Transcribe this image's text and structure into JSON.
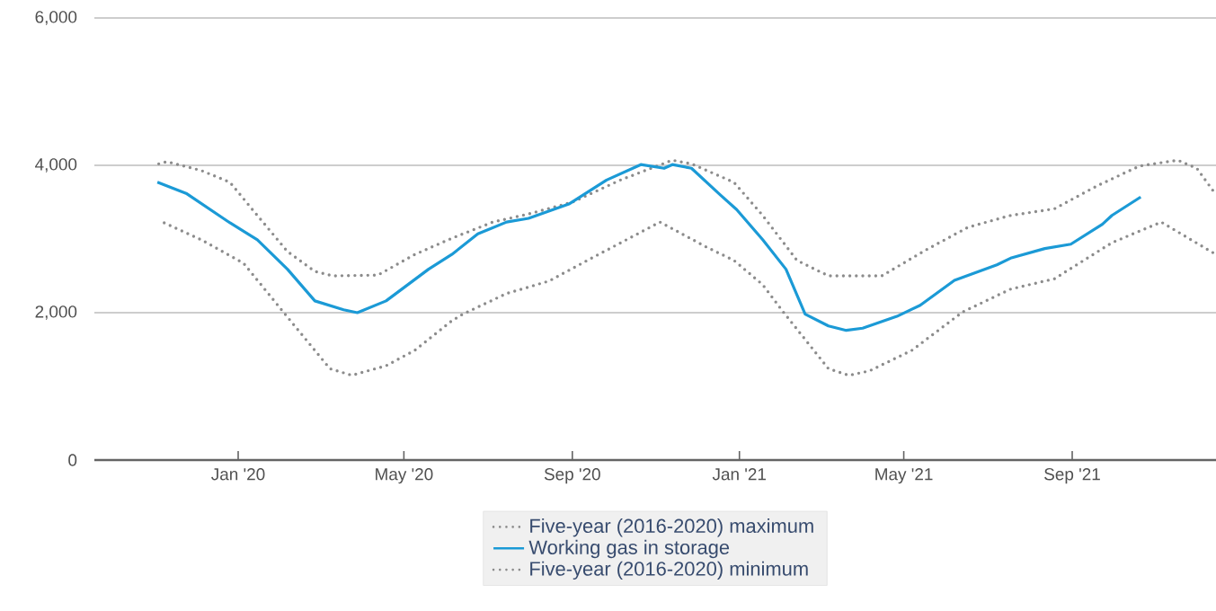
{
  "chart_data": {
    "type": "line",
    "xlim": [
      "2019-09-18",
      "2021-12-15"
    ],
    "ylim": [
      0,
      6000
    ],
    "xticks": [
      {
        "value": "2020-01-01",
        "label": "Jan '20"
      },
      {
        "value": "2020-05-01",
        "label": "May '20"
      },
      {
        "value": "2020-09-01",
        "label": "Sep '20"
      },
      {
        "value": "2021-01-01",
        "label": "Jan '21"
      },
      {
        "value": "2021-05-01",
        "label": "May '21"
      },
      {
        "value": "2021-09-01",
        "label": "Sep '21"
      }
    ],
    "yticks": [
      0,
      {
        "value": 2000,
        "label": "2,000"
      },
      {
        "value": 4000,
        "label": "4,000"
      },
      {
        "value": 6000,
        "label": "6,000"
      }
    ],
    "grid": "y",
    "legend": "bottom",
    "marker": "none",
    "series": [
      {
        "name": "Five-year (2016-2020) maximum",
        "color": "#8c8c8c",
        "line_style": "dotted",
        "x": [
          "2019-11-04",
          "2019-11-10",
          "2019-12-05",
          "2019-12-26",
          "2020-01-15",
          "2020-02-06",
          "2020-02-26",
          "2020-03-10",
          "2020-04-12",
          "2020-05-09",
          "2020-06-05",
          "2020-07-05",
          "2020-07-31",
          "2020-09-01",
          "2020-10-06",
          "2020-11-13",
          "2020-11-27",
          "2020-12-28",
          "2021-01-18",
          "2021-02-12",
          "2021-03-07",
          "2021-04-15",
          "2021-05-17",
          "2021-06-17",
          "2021-07-18",
          "2021-08-19",
          "2021-09-19",
          "2021-10-20",
          "2021-11-17",
          "2021-12-01",
          "2021-12-15"
        ],
        "values": [
          4020,
          4050,
          3930,
          3770,
          3320,
          2830,
          2560,
          2500,
          2510,
          2790,
          3010,
          3230,
          3340,
          3500,
          3800,
          4070,
          4020,
          3770,
          3320,
          2710,
          2500,
          2500,
          2850,
          3160,
          3320,
          3410,
          3720,
          3990,
          4070,
          3960,
          3600
        ]
      },
      {
        "name": "Working gas in storage",
        "color": "#1b9ad6",
        "line_style": "solid",
        "x": [
          "2019-11-03",
          "2019-11-24",
          "2019-12-26",
          "2020-01-15",
          "2020-02-06",
          "2020-02-26",
          "2020-03-18",
          "2020-03-28",
          "2020-04-18",
          "2020-05-19",
          "2020-06-05",
          "2020-06-24",
          "2020-07-15",
          "2020-07-31",
          "2020-08-30",
          "2020-09-26",
          "2020-10-21",
          "2020-11-07",
          "2020-11-13",
          "2020-11-27",
          "2020-12-18",
          "2020-12-30",
          "2021-01-18",
          "2021-02-04",
          "2021-02-18",
          "2021-03-07",
          "2021-03-20",
          "2021-04-01",
          "2021-04-26",
          "2021-05-13",
          "2021-06-07",
          "2021-07-08",
          "2021-07-18",
          "2021-08-12",
          "2021-08-31",
          "2021-09-23",
          "2021-09-30",
          "2021-10-21"
        ],
        "values": [
          3770,
          3620,
          3220,
          2990,
          2590,
          2160,
          2040,
          2000,
          2160,
          2590,
          2790,
          3070,
          3230,
          3280,
          3480,
          3800,
          4010,
          3960,
          4010,
          3960,
          3600,
          3400,
          2990,
          2590,
          1980,
          1820,
          1760,
          1790,
          1950,
          2100,
          2440,
          2650,
          2740,
          2870,
          2930,
          3200,
          3320,
          3570
        ]
      },
      {
        "name": "Five-year (2016-2020) minimum",
        "color": "#8c8c8c",
        "line_style": "dotted",
        "x": [
          "2019-11-08",
          "2019-12-05",
          "2020-01-05",
          "2020-02-06",
          "2020-03-08",
          "2020-03-24",
          "2020-04-18",
          "2020-05-09",
          "2020-06-05",
          "2020-06-13",
          "2020-07-15",
          "2020-08-15",
          "2020-09-15",
          "2020-11-04",
          "2020-12-08",
          "2020-12-28",
          "2021-01-18",
          "2021-02-02",
          "2021-03-07",
          "2021-03-22",
          "2021-04-06",
          "2021-05-07",
          "2021-06-13",
          "2021-07-18",
          "2021-08-19",
          "2021-09-30",
          "2021-11-05",
          "2021-12-15"
        ],
        "values": [
          3220,
          2990,
          2670,
          1940,
          1240,
          1150,
          1280,
          1490,
          1890,
          1980,
          2260,
          2430,
          2740,
          3230,
          2890,
          2710,
          2380,
          2010,
          1240,
          1150,
          1210,
          1490,
          2010,
          2320,
          2460,
          2950,
          3230,
          2790
        ]
      }
    ]
  }
}
